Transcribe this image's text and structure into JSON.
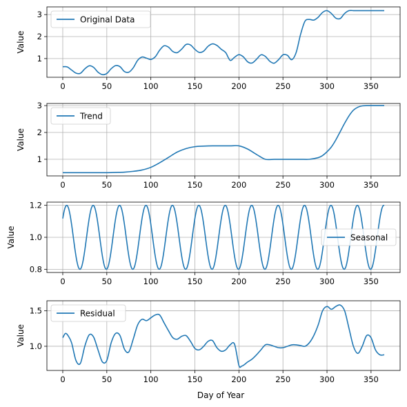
{
  "figure": {
    "xlabel": "Day of Year",
    "line_color": "#1f77b4",
    "grid": true
  },
  "chart_data": [
    {
      "type": "line",
      "series": [
        {
          "name": "Original Data"
        }
      ],
      "ylabel": "Value",
      "xlim": [
        -18,
        383
      ],
      "ylim": [
        0.15,
        3.35
      ],
      "xticks": [
        0,
        50,
        100,
        150,
        200,
        250,
        300,
        350
      ],
      "yticks": [
        1,
        2,
        3
      ],
      "legend": "upper-left",
      "x": [
        0,
        5,
        10,
        15,
        20,
        25,
        30,
        35,
        40,
        45,
        50,
        55,
        60,
        65,
        70,
        75,
        80,
        85,
        90,
        95,
        100,
        105,
        110,
        115,
        120,
        125,
        130,
        135,
        140,
        145,
        150,
        155,
        160,
        165,
        170,
        175,
        180,
        185,
        190,
        195,
        200,
        205,
        210,
        215,
        220,
        225,
        230,
        235,
        240,
        245,
        250,
        255,
        260,
        265,
        270,
        275,
        280,
        285,
        290,
        295,
        300,
        305,
        310,
        315,
        320,
        325,
        330,
        335,
        340,
        345,
        350,
        355,
        360,
        365
      ],
      "values": [
        0.63,
        0.62,
        0.48,
        0.34,
        0.33,
        0.53,
        0.67,
        0.6,
        0.38,
        0.27,
        0.32,
        0.54,
        0.68,
        0.63,
        0.41,
        0.38,
        0.58,
        0.92,
        1.07,
        1.02,
        0.96,
        1.08,
        1.38,
        1.58,
        1.52,
        1.32,
        1.27,
        1.43,
        1.64,
        1.62,
        1.42,
        1.28,
        1.34,
        1.56,
        1.67,
        1.6,
        1.42,
        1.27,
        0.92,
        1.06,
        1.18,
        1.08,
        0.85,
        0.8,
        0.97,
        1.17,
        1.1,
        0.88,
        0.79,
        0.95,
        1.17,
        1.15,
        0.95,
        1.28,
        2.1,
        2.7,
        2.78,
        2.75,
        2.88,
        3.1,
        3.18,
        3.05,
        2.84,
        2.82,
        3.05,
        3.18,
        3.18,
        3.18,
        3.18,
        3.18,
        3.18,
        3.18,
        3.18,
        3.18
      ]
    },
    {
      "type": "line",
      "series": [
        {
          "name": "Trend"
        }
      ],
      "ylabel": "Value",
      "xlim": [
        -18,
        383
      ],
      "ylim": [
        0.38,
        3.08
      ],
      "xticks": [
        0,
        50,
        100,
        150,
        200,
        250,
        300,
        350
      ],
      "yticks": [
        1,
        2,
        3
      ],
      "legend": "upper-left",
      "x": [
        0,
        10,
        20,
        30,
        40,
        50,
        60,
        70,
        80,
        90,
        100,
        110,
        120,
        130,
        140,
        150,
        160,
        170,
        180,
        190,
        200,
        210,
        220,
        230,
        240,
        250,
        260,
        270,
        280,
        290,
        295,
        300,
        305,
        310,
        315,
        320,
        325,
        330,
        335,
        340,
        345,
        350,
        355,
        360,
        365
      ],
      "values": [
        0.5,
        0.5,
        0.5,
        0.5,
        0.5,
        0.5,
        0.51,
        0.52,
        0.55,
        0.6,
        0.7,
        0.87,
        1.07,
        1.27,
        1.4,
        1.47,
        1.49,
        1.5,
        1.5,
        1.5,
        1.5,
        1.38,
        1.18,
        1.0,
        1.0,
        1.0,
        1.0,
        1.0,
        1.0,
        1.06,
        1.14,
        1.28,
        1.46,
        1.72,
        2.03,
        2.34,
        2.62,
        2.83,
        2.94,
        2.99,
        3.0,
        3.0,
        3.0,
        3.0,
        3.0
      ]
    },
    {
      "type": "line",
      "series": [
        {
          "name": "Seasonal"
        }
      ],
      "ylabel": "Value",
      "xlim": [
        -18,
        383
      ],
      "ylim": [
        0.78,
        1.22
      ],
      "xticks": [
        0,
        50,
        100,
        150,
        200,
        250,
        300,
        350
      ],
      "yticks": [
        0.8,
        1.0,
        1.2
      ],
      "legend": "center-right",
      "generator": {
        "formula": "1 + 0.2*sin(2*pi*(x+3)/30)"
      },
      "x": [
        0,
        365
      ],
      "values": [
        1.12,
        1.2
      ]
    },
    {
      "type": "line",
      "series": [
        {
          "name": "Residual"
        }
      ],
      "ylabel": "Value",
      "xlim": [
        -18,
        383
      ],
      "ylim": [
        0.66,
        1.64
      ],
      "xticks": [
        0,
        50,
        100,
        150,
        200,
        250,
        300,
        350
      ],
      "yticks": [
        1.0,
        1.5
      ],
      "legend": "upper-left",
      "x": [
        0,
        3,
        6,
        10,
        15,
        20,
        25,
        30,
        35,
        40,
        45,
        50,
        55,
        60,
        65,
        70,
        75,
        80,
        85,
        90,
        95,
        100,
        105,
        110,
        115,
        120,
        125,
        130,
        135,
        140,
        145,
        150,
        155,
        160,
        165,
        170,
        175,
        180,
        185,
        190,
        195,
        200,
        203,
        206,
        210,
        215,
        220,
        225,
        230,
        235,
        240,
        245,
        250,
        255,
        260,
        265,
        270,
        275,
        280,
        285,
        290,
        295,
        300,
        305,
        310,
        315,
        320,
        325,
        330,
        335,
        340,
        345,
        350,
        355,
        360,
        365
      ],
      "values": [
        1.12,
        1.18,
        1.15,
        1.05,
        0.8,
        0.76,
        1.0,
        1.16,
        1.13,
        0.95,
        0.78,
        0.8,
        1.05,
        1.18,
        1.15,
        0.96,
        0.92,
        1.1,
        1.3,
        1.38,
        1.36,
        1.4,
        1.44,
        1.44,
        1.33,
        1.22,
        1.12,
        1.1,
        1.14,
        1.15,
        1.07,
        0.97,
        0.95,
        1.0,
        1.07,
        1.08,
        0.98,
        0.93,
        0.95,
        1.02,
        1.03,
        0.73,
        0.72,
        0.74,
        0.78,
        0.82,
        0.88,
        0.95,
        1.02,
        1.02,
        1.0,
        0.98,
        0.98,
        1.0,
        1.02,
        1.02,
        1.01,
        1.0,
        1.05,
        1.15,
        1.3,
        1.5,
        1.56,
        1.52,
        1.56,
        1.58,
        1.5,
        1.25,
        1.0,
        0.9,
        1.0,
        1.15,
        1.12,
        0.95,
        0.88,
        0.88
      ]
    }
  ]
}
